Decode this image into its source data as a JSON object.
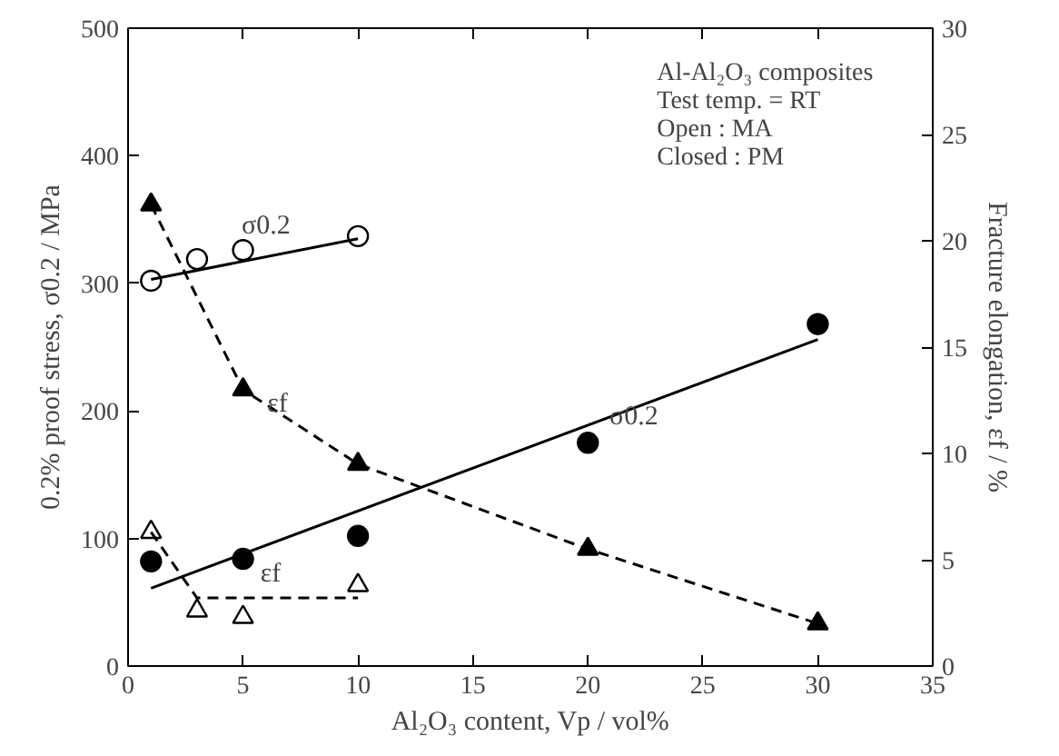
{
  "chart_data": {
    "type": "scatter",
    "xlabel": "Al₂O₃ content, Vp / vol%",
    "ylabel": "0.2% proof stress, σ0.2 / MPa",
    "y2label": "Fracture elongation, εf / %",
    "xlim": [
      0,
      35
    ],
    "xticks": [
      0,
      5,
      10,
      15,
      20,
      25,
      30,
      35
    ],
    "ylim": [
      0,
      500
    ],
    "yticks": [
      0,
      100,
      200,
      300,
      400,
      500
    ],
    "y2lim": [
      0,
      30
    ],
    "y2ticks": [
      0,
      5,
      10,
      15,
      20,
      25,
      30
    ],
    "grid": false,
    "series": [
      {
        "marker": "circle",
        "color": "#ffffff",
        "x": [
          1,
          3,
          5,
          10
        ],
        "values": [
          302,
          319,
          326,
          337
        ]
      },
      {
        "type": "line",
        "line_style": "solid",
        "color": "#000000",
        "x": [
          1,
          10
        ],
        "values": [
          303,
          335
        ]
      },
      {
        "marker": "circle",
        "color": "#000000",
        "x": [
          1,
          5,
          10,
          20,
          30
        ],
        "values": [
          82,
          84,
          102,
          175,
          268
        ]
      },
      {
        "type": "line",
        "line_style": "solid",
        "color": "#000000",
        "x": [
          1,
          30
        ],
        "values": [
          61,
          256
        ]
      },
      {
        "marker": "triangle",
        "color": "#000000",
        "axis": "y2",
        "x": [
          1,
          5,
          10,
          20,
          30
        ],
        "values": [
          21.7,
          13.0,
          9.5,
          5.5,
          2.0
        ]
      },
      {
        "type": "line",
        "line_style": "dashed",
        "color": "#000000",
        "axis": "y2",
        "x": [
          1,
          5,
          10,
          20,
          30
        ],
        "values": [
          21.7,
          13.0,
          9.5,
          5.5,
          2.0
        ]
      },
      {
        "marker": "triangle",
        "color": "#ffffff",
        "axis": "y2",
        "x": [
          1,
          3,
          5,
          10
        ],
        "values": [
          6.3,
          2.6,
          2.3,
          3.8
        ]
      },
      {
        "type": "line",
        "line_style": "dashed",
        "color": "#000000",
        "axis": "y2",
        "x": [
          1,
          3,
          10
        ],
        "values": [
          6.3,
          3.2,
          3.2
        ]
      }
    ],
    "annotations": [
      "σ0.2",
      {
        "text": "εf",
        "x": 6.5,
        "y": 205
      },
      {
        "text": "σ0.2",
        "x": 22,
        "y": 195
      },
      "εf",
      "Al-Al₂O₃ composites",
      "Test temp. = RT",
      "Open : MA",
      "Closed : PM"
    ]
  }
}
